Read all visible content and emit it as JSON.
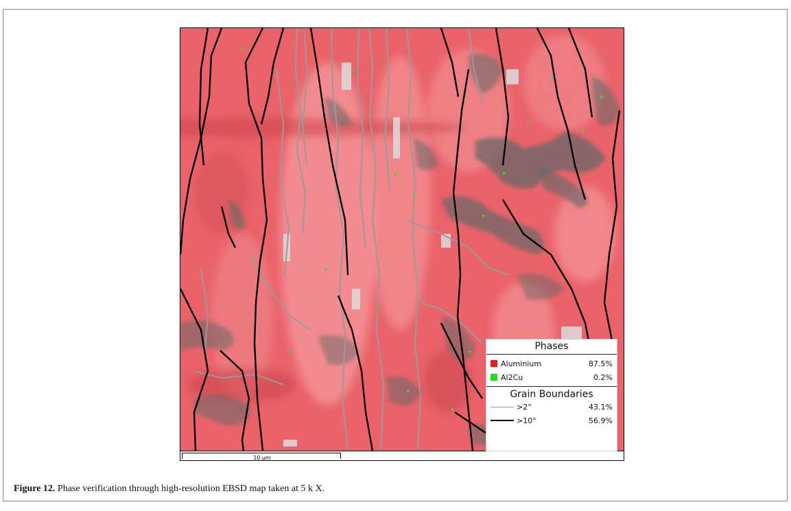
{
  "figure": {
    "scale_label": "10 µm",
    "legend": {
      "phases_title": "Phases",
      "phases": [
        {
          "name": "Aluminium",
          "value": "87.5%",
          "color": "#ee1c1c"
        },
        {
          "name": "Al2Cu",
          "value": "0.2%",
          "color": "#22dd22"
        }
      ],
      "boundaries_title": "Grain Boundaries",
      "boundaries": [
        {
          "name": ">2°",
          "value": "43.1%",
          "color": "#9a9a9a"
        },
        {
          "name": ">10°",
          "value": "56.9%",
          "color": "#000000"
        }
      ]
    },
    "map_colors": {
      "aluminium": "#e8545b",
      "boundary_low": "#9a9a9a",
      "boundary_high": "#000000",
      "unindexed": "#555555"
    }
  },
  "caption": {
    "label": "Figure 12.",
    "text": " Phase verification through high-resolution EBSD map taken at 5 k X."
  }
}
